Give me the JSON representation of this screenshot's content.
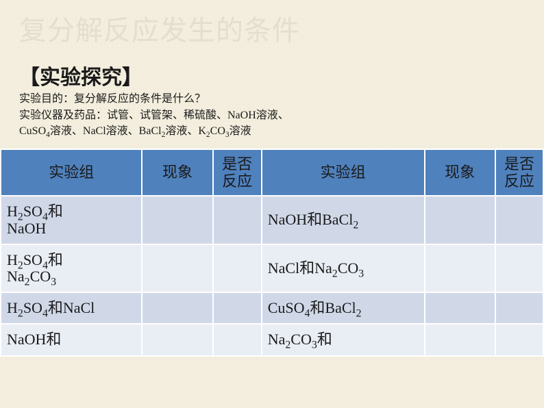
{
  "title": "复分解反应发生的条件",
  "sectionHeading": "【实验探究】",
  "purpose": "实验目的：复分解反应的条件是什么？",
  "apparatus": "实验仪器及药品：试管、试管架、稀硫酸、NaOH溶液、",
  "apparatus2": "CuSO<sub>4</sub>溶液、NaCl溶液、BaCl<sub>2</sub>溶液、K<sub>2</sub>CO<sub>3</sub>溶液",
  "table": {
    "headers": {
      "group": "实验组",
      "phenomenon": "现象",
      "reacts": "是否<br>反应"
    },
    "header_bg": "#4f81bd",
    "row_bg_odd": "#d0d8e8",
    "row_bg_even": "#e9edf4",
    "rows": [
      {
        "left": {
          "group": "H<sub>2</sub>SO<sub>4</sub>和<br>NaOH",
          "phen": "",
          "yn": ""
        },
        "right": {
          "group": "NaOH和BaCl<sub>2</sub>",
          "phen": "",
          "yn": ""
        }
      },
      {
        "left": {
          "group": "H<sub>2</sub>SO<sub>4</sub>和<br>Na<sub>2</sub>CO<sub>3</sub>",
          "phen": "",
          "yn": ""
        },
        "right": {
          "group": "NaCl和Na<sub>2</sub>CO<sub>3</sub>",
          "phen": "",
          "yn": ""
        }
      },
      {
        "left": {
          "group": "H<sub>2</sub>SO<sub>4</sub>和NaCl",
          "phen": "",
          "yn": ""
        },
        "right": {
          "group": "CuSO<sub>4</sub>和BaCl<sub>2</sub>",
          "phen": "",
          "yn": ""
        }
      },
      {
        "left": {
          "group": "NaOH和",
          "phen": "",
          "yn": ""
        },
        "right": {
          "group": "Na<sub>2</sub>CO<sub>3</sub>和",
          "phen": "",
          "yn": ""
        }
      }
    ]
  },
  "colors": {
    "page_bg": "#f3eedd",
    "title_color": "#e5ded0",
    "text_color": "#1a1a1a",
    "table_border": "#ffffff"
  },
  "fonts": {
    "title_family": "KaiTi",
    "title_size_pt": 30,
    "heading_size_pt": 22,
    "body_size_pt": 12,
    "table_size_pt": 16
  }
}
